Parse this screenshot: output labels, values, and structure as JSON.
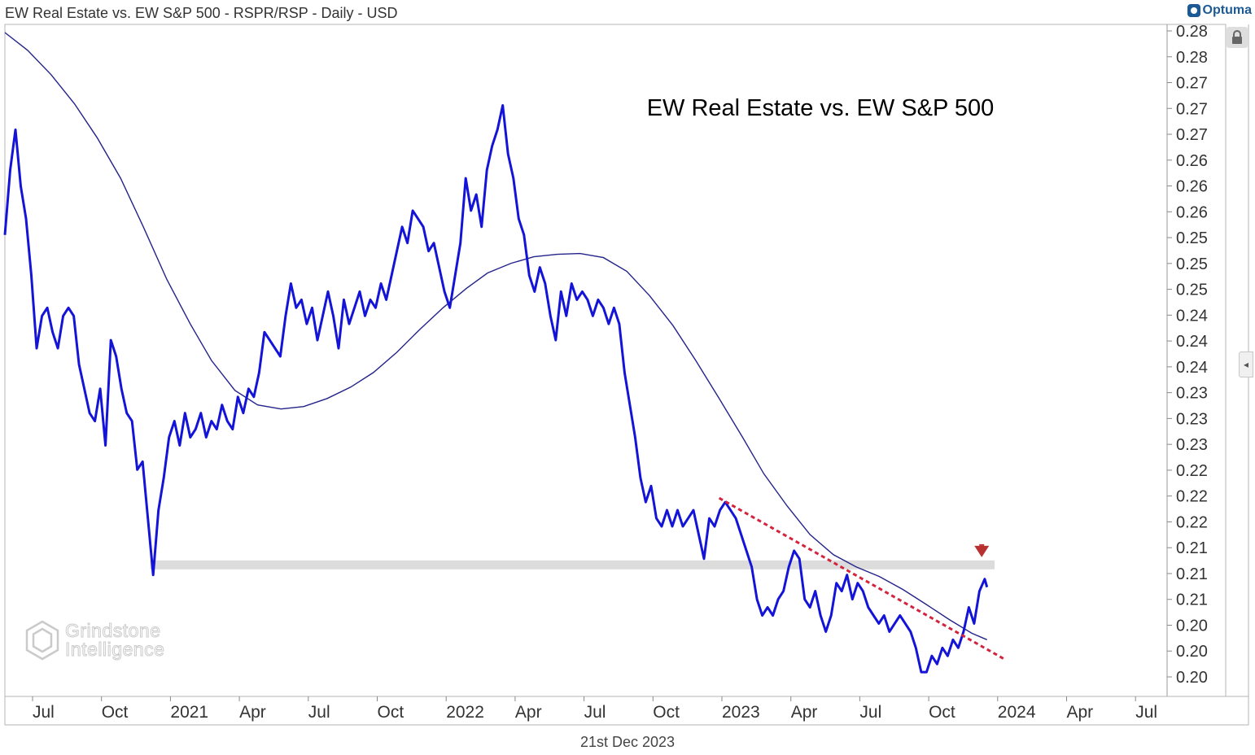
{
  "header": {
    "title": "EW Real Estate vs. EW S&P 500 - RSPR/RSP - Daily - USD"
  },
  "brand": {
    "name": "Optuma"
  },
  "watermark": {
    "line1": "Grindstone",
    "line2": "Intelligence"
  },
  "footer": {
    "date": "21st Dec 2023"
  },
  "colors": {
    "price_line": "#1414d8",
    "moving_average": "#23238a",
    "trendline": "#d4233c",
    "support_band": "#dcdcdc",
    "arrow": "#b83030",
    "brand": "#1c5a96"
  },
  "icons": {
    "lock": "lock-icon",
    "collapse": "chevron-left-icon",
    "logo": "optuma-logo-icon"
  },
  "chart_data": {
    "type": "line",
    "title": "EW Real Estate vs. EW S&P 500",
    "x_ticks": [
      "Jul",
      "Oct",
      "2021",
      "Apr",
      "Jul",
      "Oct",
      "2022",
      "Apr",
      "Jul",
      "Oct",
      "2023",
      "Apr",
      "Jul",
      "Oct",
      "2024",
      "Apr",
      "Jul"
    ],
    "y_ticks": [
      "0.28",
      "0.28",
      "0.27",
      "0.27",
      "0.27",
      "0.26",
      "0.26",
      "0.26",
      "0.25",
      "0.25",
      "0.25",
      "0.24",
      "0.24",
      "0.24",
      "0.23",
      "0.23",
      "0.23",
      "0.22",
      "0.22",
      "0.22",
      "0.21",
      "0.21",
      "0.21",
      "0.20",
      "0.20",
      "0.20"
    ],
    "y_range": [
      0.198,
      0.281
    ],
    "x_range": [
      "2020-06-01",
      "2024-08-15"
    ],
    "series": [
      {
        "kind": "price",
        "points": [
          [
            "2020-06-01",
            0.255
          ],
          [
            "2020-06-08",
            0.263
          ],
          [
            "2020-06-15",
            0.268
          ],
          [
            "2020-06-22",
            0.261
          ],
          [
            "2020-06-29",
            0.257
          ],
          [
            "2020-07-06",
            0.25
          ],
          [
            "2020-07-13",
            0.241
          ],
          [
            "2020-07-20",
            0.245
          ],
          [
            "2020-07-27",
            0.246
          ],
          [
            "2020-08-03",
            0.243
          ],
          [
            "2020-08-10",
            0.241
          ],
          [
            "2020-08-17",
            0.245
          ],
          [
            "2020-08-24",
            0.246
          ],
          [
            "2020-08-31",
            0.245
          ],
          [
            "2020-09-07",
            0.239
          ],
          [
            "2020-09-14",
            0.236
          ],
          [
            "2020-09-21",
            0.233
          ],
          [
            "2020-09-28",
            0.232
          ],
          [
            "2020-10-05",
            0.236
          ],
          [
            "2020-10-12",
            0.229
          ],
          [
            "2020-10-19",
            0.242
          ],
          [
            "2020-10-26",
            0.24
          ],
          [
            "2020-11-02",
            0.236
          ],
          [
            "2020-11-09",
            0.233
          ],
          [
            "2020-11-16",
            0.232
          ],
          [
            "2020-11-23",
            0.226
          ],
          [
            "2020-11-30",
            0.227
          ],
          [
            "2020-12-07",
            0.22
          ],
          [
            "2020-12-14",
            0.213
          ],
          [
            "2020-12-21",
            0.221
          ],
          [
            "2020-12-28",
            0.225
          ],
          [
            "2021-01-04",
            0.23
          ],
          [
            "2021-01-11",
            0.232
          ],
          [
            "2021-01-18",
            0.229
          ],
          [
            "2021-01-25",
            0.233
          ],
          [
            "2021-02-01",
            0.23
          ],
          [
            "2021-02-08",
            0.231
          ],
          [
            "2021-02-15",
            0.233
          ],
          [
            "2021-02-22",
            0.23
          ],
          [
            "2021-03-01",
            0.232
          ],
          [
            "2021-03-08",
            0.231
          ],
          [
            "2021-03-15",
            0.234
          ],
          [
            "2021-03-22",
            0.232
          ],
          [
            "2021-03-29",
            0.231
          ],
          [
            "2021-04-05",
            0.235
          ],
          [
            "2021-04-12",
            0.233
          ],
          [
            "2021-04-19",
            0.236
          ],
          [
            "2021-04-26",
            0.235
          ],
          [
            "2021-05-03",
            0.238
          ],
          [
            "2021-05-10",
            0.243
          ],
          [
            "2021-05-17",
            0.242
          ],
          [
            "2021-05-24",
            0.241
          ],
          [
            "2021-05-31",
            0.24
          ],
          [
            "2021-06-07",
            0.245
          ],
          [
            "2021-06-14",
            0.249
          ],
          [
            "2021-06-21",
            0.246
          ],
          [
            "2021-06-28",
            0.247
          ],
          [
            "2021-07-05",
            0.244
          ],
          [
            "2021-07-12",
            0.246
          ],
          [
            "2021-07-19",
            0.242
          ],
          [
            "2021-07-26",
            0.245
          ],
          [
            "2021-08-02",
            0.248
          ],
          [
            "2021-08-09",
            0.245
          ],
          [
            "2021-08-16",
            0.241
          ],
          [
            "2021-08-23",
            0.247
          ],
          [
            "2021-08-30",
            0.244
          ],
          [
            "2021-09-06",
            0.246
          ],
          [
            "2021-09-13",
            0.248
          ],
          [
            "2021-09-20",
            0.245
          ],
          [
            "2021-09-27",
            0.247
          ],
          [
            "2021-10-04",
            0.246
          ],
          [
            "2021-10-11",
            0.249
          ],
          [
            "2021-10-18",
            0.247
          ],
          [
            "2021-10-25",
            0.25
          ],
          [
            "2021-11-01",
            0.253
          ],
          [
            "2021-11-08",
            0.256
          ],
          [
            "2021-11-15",
            0.254
          ],
          [
            "2021-11-22",
            0.258
          ],
          [
            "2021-11-29",
            0.257
          ],
          [
            "2021-12-06",
            0.256
          ],
          [
            "2021-12-13",
            0.253
          ],
          [
            "2021-12-20",
            0.254
          ],
          [
            "2021-12-27",
            0.251
          ],
          [
            "2022-01-03",
            0.248
          ],
          [
            "2022-01-10",
            0.246
          ],
          [
            "2022-01-17",
            0.25
          ],
          [
            "2022-01-24",
            0.254
          ],
          [
            "2022-01-31",
            0.262
          ],
          [
            "2022-02-07",
            0.258
          ],
          [
            "2022-02-14",
            0.26
          ],
          [
            "2022-02-21",
            0.256
          ],
          [
            "2022-02-28",
            0.263
          ],
          [
            "2022-03-07",
            0.266
          ],
          [
            "2022-03-14",
            0.268
          ],
          [
            "2022-03-21",
            0.271
          ],
          [
            "2022-03-28",
            0.265
          ],
          [
            "2022-04-04",
            0.262
          ],
          [
            "2022-04-11",
            0.257
          ],
          [
            "2022-04-18",
            0.255
          ],
          [
            "2022-04-25",
            0.25
          ],
          [
            "2022-05-02",
            0.248
          ],
          [
            "2022-05-09",
            0.251
          ],
          [
            "2022-05-16",
            0.249
          ],
          [
            "2022-05-23",
            0.245
          ],
          [
            "2022-05-30",
            0.242
          ],
          [
            "2022-06-06",
            0.248
          ],
          [
            "2022-06-13",
            0.245
          ],
          [
            "2022-06-20",
            0.249
          ],
          [
            "2022-06-27",
            0.247
          ],
          [
            "2022-07-04",
            0.248
          ],
          [
            "2022-07-11",
            0.247
          ],
          [
            "2022-07-18",
            0.245
          ],
          [
            "2022-07-25",
            0.247
          ],
          [
            "2022-08-01",
            0.246
          ],
          [
            "2022-08-08",
            0.244
          ],
          [
            "2022-08-15",
            0.246
          ],
          [
            "2022-08-22",
            0.244
          ],
          [
            "2022-08-29",
            0.238
          ],
          [
            "2022-09-05",
            0.234
          ],
          [
            "2022-09-12",
            0.23
          ],
          [
            "2022-09-19",
            0.225
          ],
          [
            "2022-09-26",
            0.222
          ],
          [
            "2022-10-03",
            0.224
          ],
          [
            "2022-10-10",
            0.22
          ],
          [
            "2022-10-17",
            0.219
          ],
          [
            "2022-10-24",
            0.221
          ],
          [
            "2022-10-31",
            0.219
          ],
          [
            "2022-11-07",
            0.221
          ],
          [
            "2022-11-14",
            0.219
          ],
          [
            "2022-11-21",
            0.22
          ],
          [
            "2022-11-28",
            0.221
          ],
          [
            "2022-12-05",
            0.218
          ],
          [
            "2022-12-12",
            0.215
          ],
          [
            "2022-12-19",
            0.22
          ],
          [
            "2022-12-26",
            0.219
          ],
          [
            "2023-01-02",
            0.221
          ],
          [
            "2023-01-09",
            0.222
          ],
          [
            "2023-01-16",
            0.221
          ],
          [
            "2023-01-23",
            0.22
          ],
          [
            "2023-01-30",
            0.218
          ],
          [
            "2023-02-06",
            0.216
          ],
          [
            "2023-02-13",
            0.214
          ],
          [
            "2023-02-20",
            0.21
          ],
          [
            "2023-02-27",
            0.208
          ],
          [
            "2023-03-06",
            0.209
          ],
          [
            "2023-03-13",
            0.208
          ],
          [
            "2023-03-20",
            0.21
          ],
          [
            "2023-03-27",
            0.211
          ],
          [
            "2023-04-03",
            0.214
          ],
          [
            "2023-04-10",
            0.216
          ],
          [
            "2023-04-17",
            0.215
          ],
          [
            "2023-04-24",
            0.21
          ],
          [
            "2023-05-01",
            0.209
          ],
          [
            "2023-05-08",
            0.211
          ],
          [
            "2023-05-15",
            0.208
          ],
          [
            "2023-05-22",
            0.206
          ],
          [
            "2023-05-29",
            0.208
          ],
          [
            "2023-06-05",
            0.212
          ],
          [
            "2023-06-12",
            0.211
          ],
          [
            "2023-06-19",
            0.213
          ],
          [
            "2023-06-26",
            0.21
          ],
          [
            "2023-07-03",
            0.212
          ],
          [
            "2023-07-10",
            0.211
          ],
          [
            "2023-07-17",
            0.209
          ],
          [
            "2023-07-24",
            0.208
          ],
          [
            "2023-07-31",
            0.207
          ],
          [
            "2023-08-07",
            0.208
          ],
          [
            "2023-08-14",
            0.206
          ],
          [
            "2023-08-21",
            0.207
          ],
          [
            "2023-08-28",
            0.208
          ],
          [
            "2023-09-04",
            0.207
          ],
          [
            "2023-09-11",
            0.206
          ],
          [
            "2023-09-18",
            0.204
          ],
          [
            "2023-09-25",
            0.201
          ],
          [
            "2023-10-02",
            0.201
          ],
          [
            "2023-10-09",
            0.203
          ],
          [
            "2023-10-16",
            0.202
          ],
          [
            "2023-10-23",
            0.204
          ],
          [
            "2023-10-30",
            0.203
          ],
          [
            "2023-11-06",
            0.205
          ],
          [
            "2023-11-13",
            0.204
          ],
          [
            "2023-11-20",
            0.206
          ],
          [
            "2023-11-27",
            0.209
          ],
          [
            "2023-12-04",
            0.207
          ],
          [
            "2023-12-11",
            0.211
          ],
          [
            "2023-12-18",
            0.2125
          ],
          [
            "2023-12-21",
            0.2115
          ]
        ]
      },
      {
        "kind": "moving_average",
        "points": [
          [
            "2020-06-01",
            0.28
          ],
          [
            "2020-07-01",
            0.2778
          ],
          [
            "2020-08-01",
            0.2748
          ],
          [
            "2020-09-01",
            0.2712
          ],
          [
            "2020-10-01",
            0.267
          ],
          [
            "2020-11-01",
            0.262
          ],
          [
            "2020-12-01",
            0.256
          ],
          [
            "2021-01-01",
            0.2495
          ],
          [
            "2021-02-01",
            0.244
          ],
          [
            "2021-03-01",
            0.2395
          ],
          [
            "2021-04-01",
            0.2358
          ],
          [
            "2021-05-01",
            0.234
          ],
          [
            "2021-06-01",
            0.2335
          ],
          [
            "2021-07-01",
            0.2338
          ],
          [
            "2021-08-01",
            0.2348
          ],
          [
            "2021-09-01",
            0.2362
          ],
          [
            "2021-10-01",
            0.238
          ],
          [
            "2021-11-01",
            0.2405
          ],
          [
            "2021-12-01",
            0.2433
          ],
          [
            "2022-01-01",
            0.246
          ],
          [
            "2022-02-01",
            0.2484
          ],
          [
            "2022-03-01",
            0.2503
          ],
          [
            "2022-04-01",
            0.2515
          ],
          [
            "2022-05-01",
            0.2523
          ],
          [
            "2022-06-01",
            0.2526
          ],
          [
            "2022-07-01",
            0.2527
          ],
          [
            "2022-08-01",
            0.2522
          ],
          [
            "2022-09-01",
            0.2505
          ],
          [
            "2022-10-01",
            0.2475
          ],
          [
            "2022-11-01",
            0.2438
          ],
          [
            "2022-12-01",
            0.2395
          ],
          [
            "2023-01-01",
            0.2348
          ],
          [
            "2023-02-01",
            0.23
          ],
          [
            "2023-03-01",
            0.2255
          ],
          [
            "2023-04-01",
            0.2215
          ],
          [
            "2023-05-01",
            0.218
          ],
          [
            "2023-06-01",
            0.2155
          ],
          [
            "2023-07-01",
            0.214
          ],
          [
            "2023-08-01",
            0.2128
          ],
          [
            "2023-09-01",
            0.2112
          ],
          [
            "2023-10-01",
            0.2094
          ],
          [
            "2023-11-01",
            0.2075
          ],
          [
            "2023-12-01",
            0.2058
          ],
          [
            "2023-12-21",
            0.205
          ]
        ]
      }
    ],
    "annotations": {
      "support_band": {
        "from": "2020-12-10",
        "to": "2023-12-31",
        "low": 0.2137,
        "high": 0.2148
      },
      "trendline": {
        "from": [
          "2023-01-01",
          0.2225
        ],
        "to": [
          "2024-01-15",
          0.2025
        ]
      },
      "arrow": {
        "date": "2023-12-14",
        "top": 0.2168,
        "bottom": 0.2152
      }
    }
  }
}
